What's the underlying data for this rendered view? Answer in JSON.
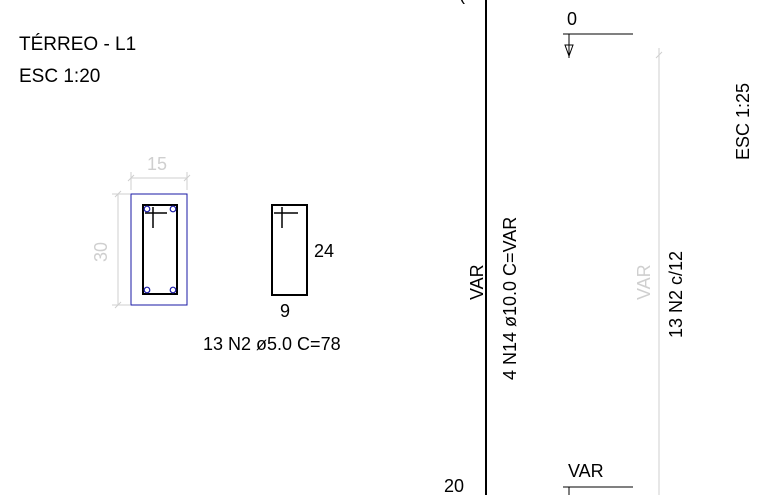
{
  "title": {
    "line1": "TÉRREO - L1",
    "line2": "ESC 1:20"
  },
  "section": {
    "width_dim": "15",
    "height_dim": "30"
  },
  "stirrup": {
    "side_dim": "24",
    "bottom_dim": "9",
    "label": "13 N2 ø5.0  C=78"
  },
  "elevation": {
    "top_partial": "(",
    "left_var": "VAR",
    "main_bar": "4 N14 ø10.0  C=VAR",
    "bottom_num": "20",
    "top_level": "0",
    "bottom_level": "VAR",
    "grey_var": "VAR",
    "stirrups": "13 N2 c/12",
    "scale": "ESC 1:25"
  },
  "colors": {
    "line": "#000000",
    "dimension": "#cfcfcf",
    "cover": "#1a1aa6"
  }
}
